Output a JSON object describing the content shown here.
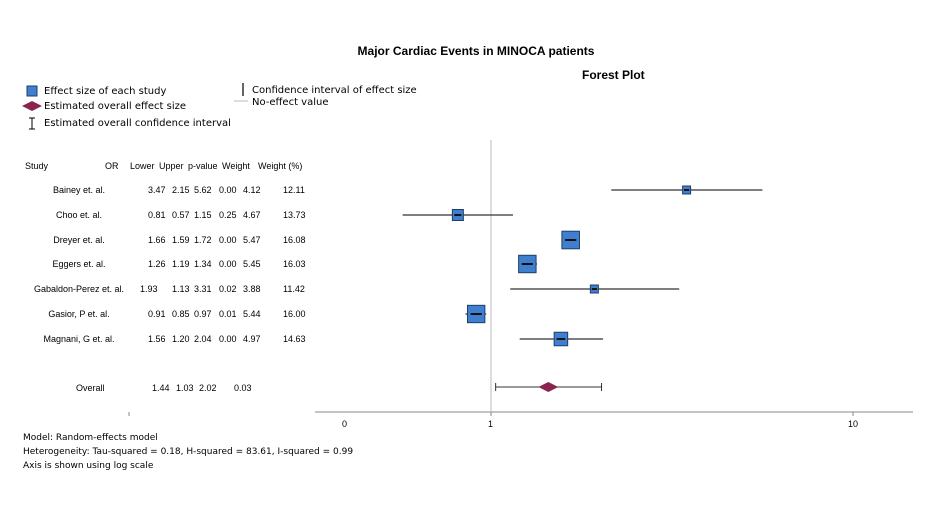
{
  "chart_data": {
    "type": "forest",
    "title": "Major Cardiac Events in MINOCA patients",
    "subtitle": "Forest Plot",
    "legend": {
      "effect": "Effect size of each study",
      "overall_effect": "Estimated overall effect size",
      "overall_ci": "Estimated overall confidence interval",
      "ci": "Confidence interval of effect size",
      "no_effect": "No-effect value"
    },
    "columns": [
      "Study",
      "OR",
      "Lower",
      "Upper",
      "p-value",
      "Weight",
      "Weight (%)"
    ],
    "studies": [
      {
        "name": "Bainey et. al.",
        "or": 3.47,
        "lower": 2.15,
        "upper": 5.62,
        "p": "0.00",
        "weight": 4.12,
        "weight_pct": 12.11,
        "or_s": "3.47",
        "lower_s": "2.15",
        "upper_s": "5.62",
        "weight_s": "4.12",
        "weight_pct_s": "12.11"
      },
      {
        "name": "Choo et. al.",
        "or": 0.81,
        "lower": 0.57,
        "upper": 1.15,
        "p": "0.25",
        "weight": 4.67,
        "weight_pct": 13.73,
        "or_s": "0.81",
        "lower_s": "0.57",
        "upper_s": "1.15",
        "weight_s": "4.67",
        "weight_pct_s": "13.73"
      },
      {
        "name": "Dreyer et. al.",
        "or": 1.66,
        "lower": 1.59,
        "upper": 1.72,
        "p": "0.00",
        "weight": 5.47,
        "weight_pct": 16.08,
        "or_s": "1.66",
        "lower_s": "1.59",
        "upper_s": "1.72",
        "weight_s": "5.47",
        "weight_pct_s": "16.08"
      },
      {
        "name": "Eggers et. al.",
        "or": 1.26,
        "lower": 1.19,
        "upper": 1.34,
        "p": "0.00",
        "weight": 5.45,
        "weight_pct": 16.03,
        "or_s": "1.26",
        "lower_s": "1.19",
        "upper_s": "1.34",
        "weight_s": "5.45",
        "weight_pct_s": "16.03"
      },
      {
        "name": "Gabaldon-Perez et. al.",
        "or": 1.93,
        "lower": 1.13,
        "upper": 3.31,
        "p": "0.02",
        "weight": 3.88,
        "weight_pct": 11.42,
        "or_s": "1.93",
        "lower_s": "1.13",
        "upper_s": "3.31",
        "weight_s": "3.88",
        "weight_pct_s": "11.42"
      },
      {
        "name": "Gasior, P et. al.",
        "or": 0.91,
        "lower": 0.85,
        "upper": 0.97,
        "p": "0.01",
        "weight": 5.44,
        "weight_pct": 16.0,
        "or_s": "0.91",
        "lower_s": "0.85",
        "upper_s": "0.97",
        "weight_s": "5.44",
        "weight_pct_s": "16.00"
      },
      {
        "name": "Magnani, G et. al.",
        "or": 1.56,
        "lower": 1.2,
        "upper": 2.04,
        "p": "0.00",
        "weight": 4.97,
        "weight_pct": 14.63,
        "or_s": "1.56",
        "lower_s": "1.20",
        "upper_s": "2.04",
        "weight_s": "4.97",
        "weight_pct_s": "14.63"
      }
    ],
    "overall": {
      "name": "Overall",
      "or": 1.44,
      "lower": 1.03,
      "upper": 2.02,
      "p": "0.03",
      "or_s": "1.44",
      "lower_s": "1.03",
      "upper_s": "2.02"
    },
    "x_ticks": [
      "0",
      "1",
      "10"
    ],
    "no_effect_value": 1,
    "xscale": "log",
    "footnotes": {
      "model": "Model: Random-effects model",
      "heterogeneity": "Heterogeneity: Tau-squared = 0.18, H-squared = 83.61, I-squared = 0.99",
      "axis": "Axis is shown using log scale"
    },
    "colors": {
      "box": "#3f7fd0",
      "box_border": "#1f3f66",
      "diamond": "#8b2350",
      "line": "#333333",
      "ref": "#bbbbbb"
    }
  }
}
